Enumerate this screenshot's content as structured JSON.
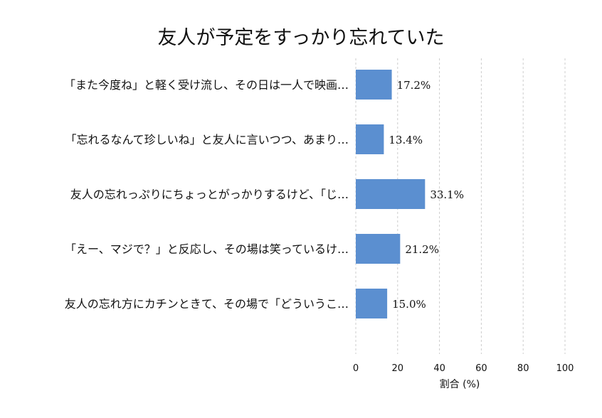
{
  "chart_data": {
    "type": "bar",
    "orientation": "horizontal",
    "title": "友人が予定をすっかり忘れていた",
    "xlabel": "割合 (%)",
    "ylabel": "",
    "xlim": [
      0,
      100
    ],
    "xticks": [
      0,
      20,
      40,
      60,
      80,
      100
    ],
    "grid": "vertical",
    "bar_color": "#5b8fd0",
    "categories": [
      "「また今度ね」と軽く受け流し、その日は一人で映画…",
      "「忘れるなんて珍しいね」と友人に言いつつ、あまり…",
      "友人の忘れっぷりにちょっとがっかりするけど、「じ…",
      "「えー、マジで？」と反応し、その場は笑っているけ…",
      "友人の忘れ方にカチンときて、その場で「どういうこ…"
    ],
    "values": [
      17.2,
      13.4,
      33.1,
      21.2,
      15.0
    ],
    "data_labels": [
      "17.2%",
      "13.4%",
      "33.1%",
      "21.2%",
      "15.0%"
    ]
  }
}
